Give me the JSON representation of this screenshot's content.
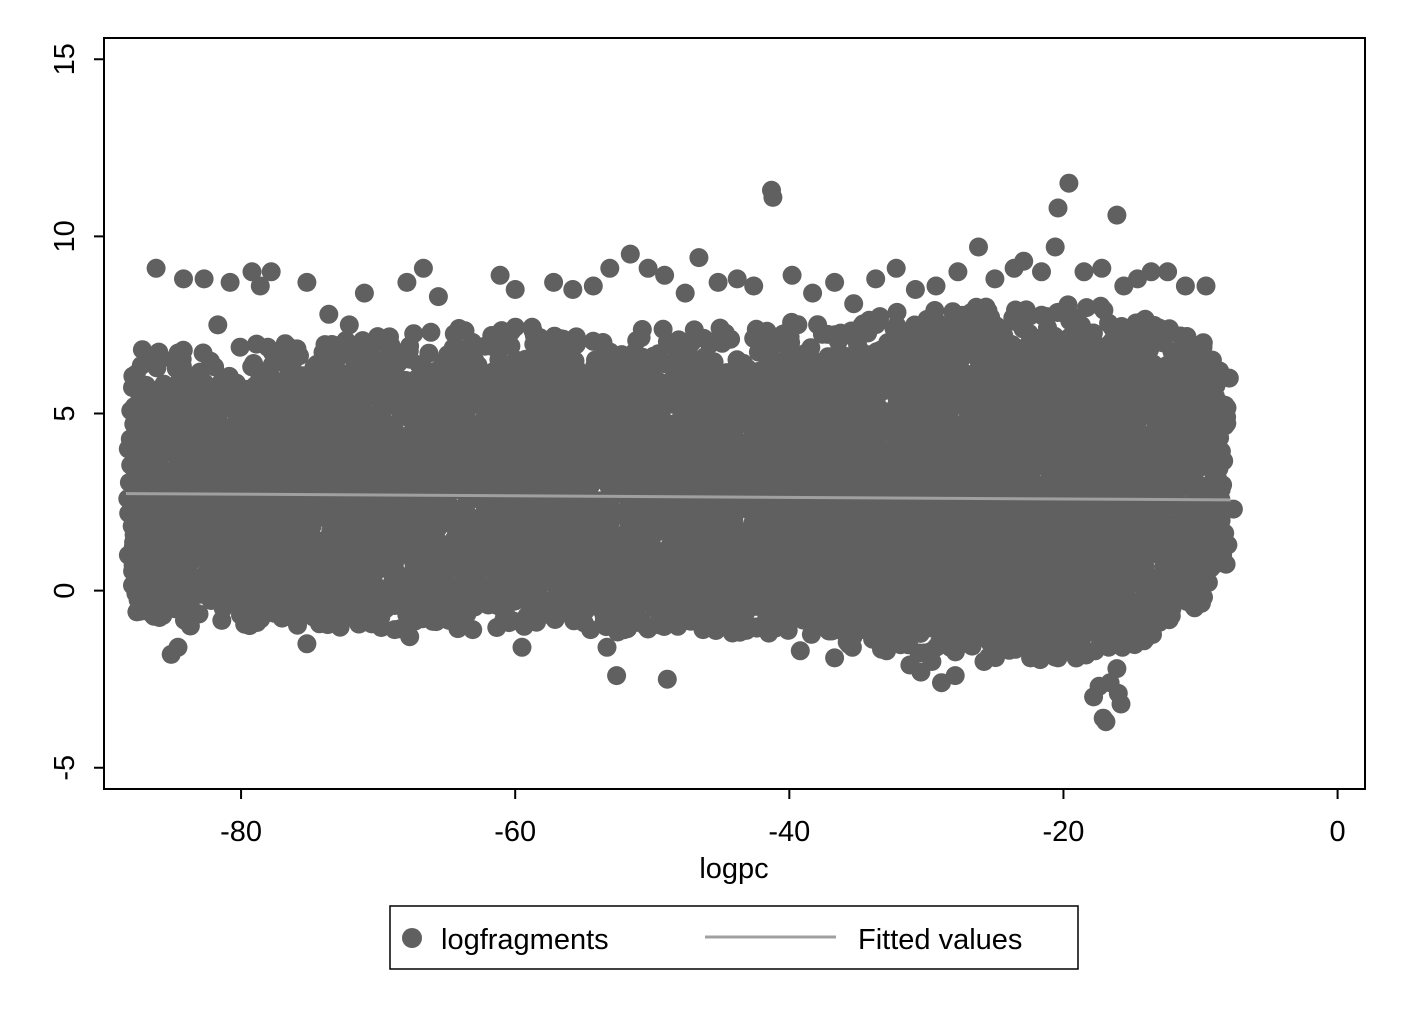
{
  "chart_data": {
    "type": "scatter",
    "title": "",
    "xlabel": "logpc",
    "ylabel": "",
    "xlim": [
      -90,
      2
    ],
    "ylim": [
      -5.6,
      15.6
    ],
    "x_ticks": [
      -80,
      -60,
      -40,
      -20,
      0
    ],
    "y_ticks": [
      -5,
      0,
      5,
      10,
      15
    ],
    "grid": false,
    "legend_position": "bottom",
    "series": [
      {
        "name": "logfragments",
        "kind": "scatter",
        "color": "#606060",
        "band": [
          [
            -88,
            5.3,
            0.2
          ],
          [
            -80,
            5.6,
            -0.1
          ],
          [
            -70,
            5.8,
            -0.2
          ],
          [
            -60,
            6.1,
            -0.2
          ],
          [
            -50,
            6.0,
            -0.3
          ],
          [
            -40,
            6.2,
            -0.5
          ],
          [
            -30,
            6.6,
            -0.9
          ],
          [
            -20,
            6.9,
            -1.1
          ],
          [
            -15,
            6.6,
            -0.8
          ],
          [
            -10,
            5.6,
            0.5
          ],
          [
            -8,
            4.6,
            1.6
          ]
        ],
        "outliers": [
          [
            -87.2,
            6.8
          ],
          [
            -86.2,
            9.1
          ],
          [
            -84.2,
            8.8
          ],
          [
            -82.7,
            8.8
          ],
          [
            -81.7,
            7.5
          ],
          [
            -80.8,
            8.7
          ],
          [
            -79.2,
            9.0
          ],
          [
            -78.6,
            8.6
          ],
          [
            -77.8,
            9.0
          ],
          [
            -76.6,
            6.9
          ],
          [
            -75.2,
            8.7
          ],
          [
            -73.6,
            7.8
          ],
          [
            -72.1,
            7.5
          ],
          [
            -71.0,
            8.4
          ],
          [
            -69.6,
            6.5
          ],
          [
            -67.9,
            8.7
          ],
          [
            -66.7,
            9.1
          ],
          [
            -65.6,
            8.3
          ],
          [
            -64.1,
            7.4
          ],
          [
            -62.2,
            6.9
          ],
          [
            -61.1,
            8.9
          ],
          [
            -60.0,
            8.5
          ],
          [
            -58.6,
            7.2
          ],
          [
            -57.2,
            8.7
          ],
          [
            -55.8,
            8.5
          ],
          [
            -54.3,
            8.6
          ],
          [
            -53.1,
            9.1
          ],
          [
            -51.6,
            9.5
          ],
          [
            -50.3,
            9.1
          ],
          [
            -49.1,
            8.9
          ],
          [
            -47.6,
            8.4
          ],
          [
            -46.6,
            9.4
          ],
          [
            -45.2,
            8.7
          ],
          [
            -43.8,
            8.8
          ],
          [
            -42.6,
            8.6
          ],
          [
            -41.3,
            11.3
          ],
          [
            -41.2,
            11.1
          ],
          [
            -39.8,
            8.9
          ],
          [
            -38.3,
            8.4
          ],
          [
            -36.7,
            8.7
          ],
          [
            -35.3,
            8.1
          ],
          [
            -33.7,
            8.8
          ],
          [
            -32.2,
            9.1
          ],
          [
            -30.8,
            8.5
          ],
          [
            -29.3,
            8.6
          ],
          [
            -27.7,
            9.0
          ],
          [
            -26.2,
            9.7
          ],
          [
            -25.0,
            8.8
          ],
          [
            -23.6,
            9.1
          ],
          [
            -22.9,
            9.3
          ],
          [
            -21.6,
            9.0
          ],
          [
            -20.6,
            9.7
          ],
          [
            -20.4,
            10.8
          ],
          [
            -19.6,
            11.5
          ],
          [
            -18.5,
            9.0
          ],
          [
            -17.2,
            9.1
          ],
          [
            -16.1,
            10.6
          ],
          [
            -15.6,
            8.6
          ],
          [
            -14.6,
            8.8
          ],
          [
            -13.6,
            9.0
          ],
          [
            -12.4,
            9.0
          ],
          [
            -11.1,
            8.6
          ],
          [
            -9.6,
            8.6
          ],
          [
            -9.8,
            7.0
          ],
          [
            -8.6,
            6.2
          ],
          [
            -7.9,
            6.0
          ],
          [
            -8.1,
            4.9
          ],
          [
            -7.6,
            2.3
          ],
          [
            -8.6,
            1.5
          ],
          [
            -9.1,
            2.1
          ],
          [
            -10.6,
            0.4
          ],
          [
            -87.6,
            -0.6
          ],
          [
            -85.7,
            -0.7
          ],
          [
            -85.1,
            -1.8
          ],
          [
            -84.6,
            -1.6
          ],
          [
            -83.7,
            -1.0
          ],
          [
            -78.3,
            -0.6
          ],
          [
            -75.2,
            -1.5
          ],
          [
            -68.8,
            -1.1
          ],
          [
            -67.7,
            -1.3
          ],
          [
            -63.1,
            -1.1
          ],
          [
            -59.5,
            -1.6
          ],
          [
            -54.5,
            -1.1
          ],
          [
            -53.3,
            -1.6
          ],
          [
            -52.6,
            -2.4
          ],
          [
            -48.9,
            -2.5
          ],
          [
            -46.3,
            -1.1
          ],
          [
            -41.5,
            -1.2
          ],
          [
            -39.2,
            -1.7
          ],
          [
            -36.7,
            -1.9
          ],
          [
            -35.4,
            -1.6
          ],
          [
            -32.9,
            -1.7
          ],
          [
            -31.2,
            -2.1
          ],
          [
            -30.4,
            -2.3
          ],
          [
            -29.6,
            -2.0
          ],
          [
            -28.9,
            -2.6
          ],
          [
            -27.9,
            -2.4
          ],
          [
            -25.8,
            -2.0
          ],
          [
            -22.4,
            -1.9
          ],
          [
            -20.4,
            -1.9
          ],
          [
            -19.2,
            -1.7
          ],
          [
            -18.3,
            -1.2
          ],
          [
            -17.8,
            -3.0
          ],
          [
            -17.4,
            -2.7
          ],
          [
            -17.1,
            -3.6
          ],
          [
            -16.9,
            -3.7
          ],
          [
            -16.6,
            -2.6
          ],
          [
            -16.1,
            -2.2
          ],
          [
            -16.0,
            -2.9
          ],
          [
            -15.8,
            -3.2
          ],
          [
            -15.7,
            -1.6
          ],
          [
            -15.2,
            -1.4
          ]
        ]
      },
      {
        "name": "Fitted values",
        "kind": "line",
        "color": "#a0a0a0",
        "x": [
          -88.4,
          -7.8
        ],
        "y": [
          2.74,
          2.56
        ]
      }
    ]
  }
}
